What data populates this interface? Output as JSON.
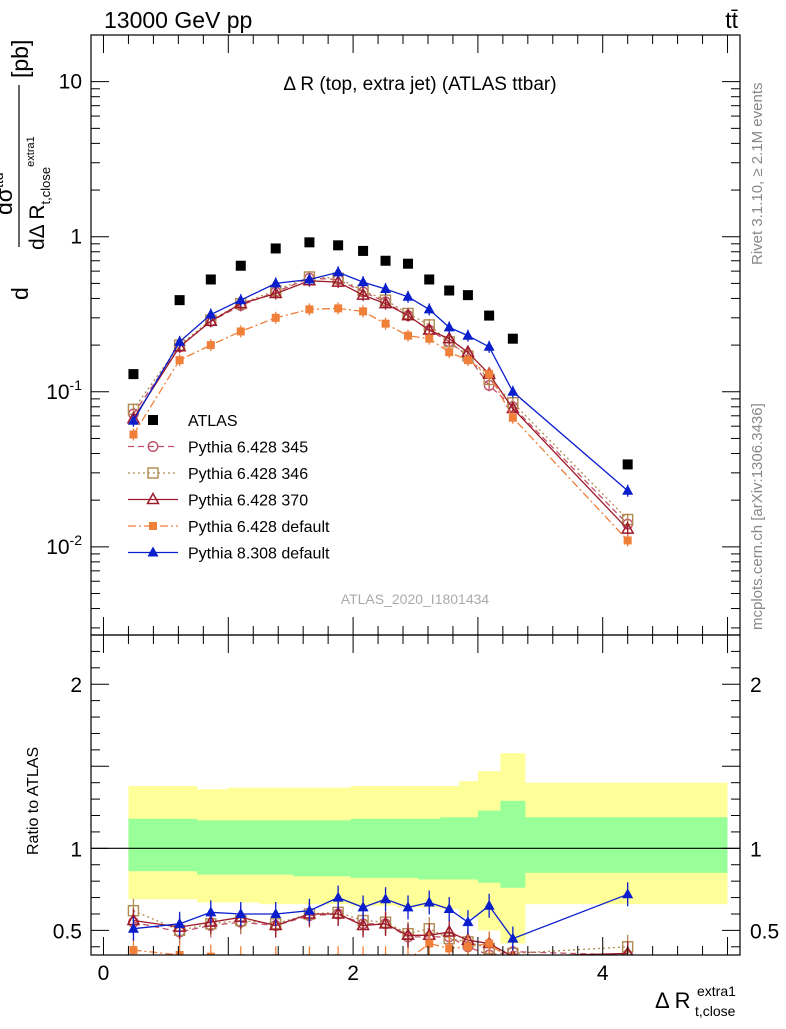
{
  "header": {
    "energy_label": "13000 GeV pp",
    "process_label": "tt̄"
  },
  "side_labels": {
    "rivet": "Rivet 3.1.10, ≥ 2.1M events",
    "mcplots": "mcplots.cern.ch [arXiv:1306.3436]"
  },
  "colors": {
    "ATLAS": "#000000",
    "p345": "#c0506a",
    "p346": "#b08a50",
    "p370": "#9e1a2a",
    "p6def": "#f07f3a",
    "p8def": "#0a1ecc",
    "band_inner": "#99ff99",
    "band_outer": "#ffff99"
  },
  "chart_data": [
    {
      "type": "scatter",
      "panel": "main",
      "title": "Δ R (top, extra jet) (ATLAS ttbar)",
      "watermark": "ATLAS_2020_I1801434",
      "ylabel": "dσ^{ttd}/dΔ R_{t,close}^{extra1} [pb]",
      "yscale": "log",
      "ylim": [
        0.0027,
        20
      ],
      "xlim": [
        -0.1,
        5.1
      ],
      "ytick_labels": [
        "10^{-2}",
        "10^{-1}",
        "1",
        "10"
      ],
      "legend_position": "lower-left",
      "x": [
        0.24,
        0.61,
        0.86,
        1.1,
        1.38,
        1.65,
        1.88,
        2.08,
        2.26,
        2.44,
        2.61,
        2.77,
        2.92,
        3.09,
        3.28,
        4.2
      ],
      "series": [
        {
          "name": "ATLAS",
          "key": "ATLAS",
          "style": "data",
          "values": [
            0.13,
            0.39,
            0.53,
            0.65,
            0.84,
            0.92,
            0.88,
            0.81,
            0.7,
            0.67,
            0.53,
            0.45,
            0.42,
            0.31,
            0.22,
            0.034
          ]
        },
        {
          "name": "Pythia 6.428 345",
          "key": "p345",
          "style": "open-circle",
          "dash": "6,4",
          "values": [
            0.072,
            0.195,
            0.285,
            0.36,
            0.44,
            0.54,
            0.53,
            0.44,
            0.38,
            0.31,
            0.25,
            0.21,
            0.17,
            0.11,
            0.08,
            0.014
          ]
        },
        {
          "name": "Pythia 6.428 346",
          "key": "p346",
          "style": "open-square",
          "dash": "2,3",
          "values": [
            0.077,
            0.2,
            0.29,
            0.37,
            0.45,
            0.55,
            0.54,
            0.45,
            0.39,
            0.32,
            0.27,
            0.21,
            0.17,
            0.12,
            0.085,
            0.015
          ]
        },
        {
          "name": "Pythia 6.428 370",
          "key": "p370",
          "style": "open-triangle",
          "dash": "",
          "values": [
            0.067,
            0.195,
            0.285,
            0.37,
            0.43,
            0.52,
            0.51,
            0.42,
            0.37,
            0.31,
            0.25,
            0.22,
            0.18,
            0.13,
            0.078,
            0.013
          ]
        },
        {
          "name": "Pythia 6.428 default",
          "key": "p6def",
          "style": "filled-square",
          "dash": "8,3,2,3",
          "values": [
            0.053,
            0.16,
            0.2,
            0.245,
            0.3,
            0.34,
            0.345,
            0.33,
            0.275,
            0.23,
            0.22,
            0.18,
            0.16,
            0.13,
            0.068,
            0.011
          ]
        },
        {
          "name": "Pythia 8.308 default",
          "key": "p8def",
          "style": "filled-triangle",
          "dash": "",
          "values": [
            0.065,
            0.21,
            0.315,
            0.39,
            0.5,
            0.53,
            0.59,
            0.51,
            0.46,
            0.41,
            0.34,
            0.26,
            0.23,
            0.195,
            0.1,
            0.023
          ]
        }
      ]
    },
    {
      "type": "scatter",
      "panel": "ratio",
      "ylabel": "Ratio to ATLAS",
      "xlabel": "Δ R_{t,close}^{extra1}",
      "ylim": [
        0.35,
        2.3
      ],
      "xlim": [
        -0.1,
        5.1
      ],
      "yticks": [
        0.5,
        1,
        2
      ],
      "xticks": [
        0,
        2,
        4
      ],
      "band_edges": [
        0.2,
        0.5,
        0.75,
        1.0,
        1.25,
        1.52,
        1.78,
        1.98,
        2.18,
        2.35,
        2.52,
        2.7,
        2.85,
        3.0,
        3.18,
        3.38,
        5.0
      ],
      "band_inner_lo": [
        0.86,
        0.86,
        0.84,
        0.84,
        0.84,
        0.83,
        0.83,
        0.82,
        0.82,
        0.82,
        0.81,
        0.81,
        0.81,
        0.79,
        0.76,
        0.85
      ],
      "band_inner_hi": [
        1.18,
        1.18,
        1.17,
        1.17,
        1.17,
        1.17,
        1.17,
        1.18,
        1.18,
        1.18,
        1.18,
        1.19,
        1.19,
        1.23,
        1.29,
        1.19
      ],
      "band_outer_lo": [
        0.69,
        0.69,
        0.67,
        0.67,
        0.66,
        0.66,
        0.66,
        0.65,
        0.65,
        0.64,
        0.64,
        0.63,
        0.58,
        0.5,
        0.42,
        0.66
      ],
      "band_outer_hi": [
        1.38,
        1.38,
        1.36,
        1.37,
        1.37,
        1.37,
        1.37,
        1.38,
        1.38,
        1.38,
        1.38,
        1.38,
        1.41,
        1.47,
        1.58,
        1.4
      ],
      "x": [
        0.24,
        0.61,
        0.86,
        1.1,
        1.38,
        1.65,
        1.88,
        2.08,
        2.26,
        2.44,
        2.61,
        2.77,
        2.92,
        3.09,
        3.28,
        4.2
      ],
      "series": [
        {
          "key": "p345",
          "style": "open-circle",
          "dash": "6,4",
          "values": [
            0.55,
            0.49,
            0.53,
            0.55,
            0.53,
            0.59,
            0.6,
            0.54,
            0.54,
            0.46,
            0.46,
            0.46,
            0.4,
            0.35,
            0.37,
            0.35
          ]
        },
        {
          "key": "p346",
          "style": "open-square",
          "dash": "2,3",
          "values": [
            0.62,
            0.5,
            0.54,
            0.56,
            0.54,
            0.6,
            0.61,
            0.56,
            0.55,
            0.48,
            0.51,
            0.45,
            0.43,
            0.39,
            0.36,
            0.4
          ]
        },
        {
          "key": "p370",
          "style": "open-triangle",
          "dash": "",
          "values": [
            0.56,
            0.52,
            0.55,
            0.58,
            0.53,
            0.6,
            0.6,
            0.53,
            0.54,
            0.47,
            0.47,
            0.49,
            0.44,
            0.42,
            0.34,
            0.36
          ]
        },
        {
          "key": "p6def",
          "style": "filled-square",
          "dash": "8,3,2,3",
          "values": [
            0.38,
            0.35,
            0.34,
            0.33,
            0.33,
            0.33,
            0.33,
            0.33,
            0.33,
            0.32,
            0.42,
            0.39,
            0.4,
            0.42,
            0.31,
            0.32
          ]
        },
        {
          "key": "p8def",
          "style": "filled-triangle",
          "dash": "",
          "values": [
            0.51,
            0.54,
            0.61,
            0.6,
            0.6,
            0.62,
            0.7,
            0.64,
            0.69,
            0.64,
            0.67,
            0.63,
            0.55,
            0.65,
            0.45,
            0.72
          ]
        }
      ]
    }
  ]
}
